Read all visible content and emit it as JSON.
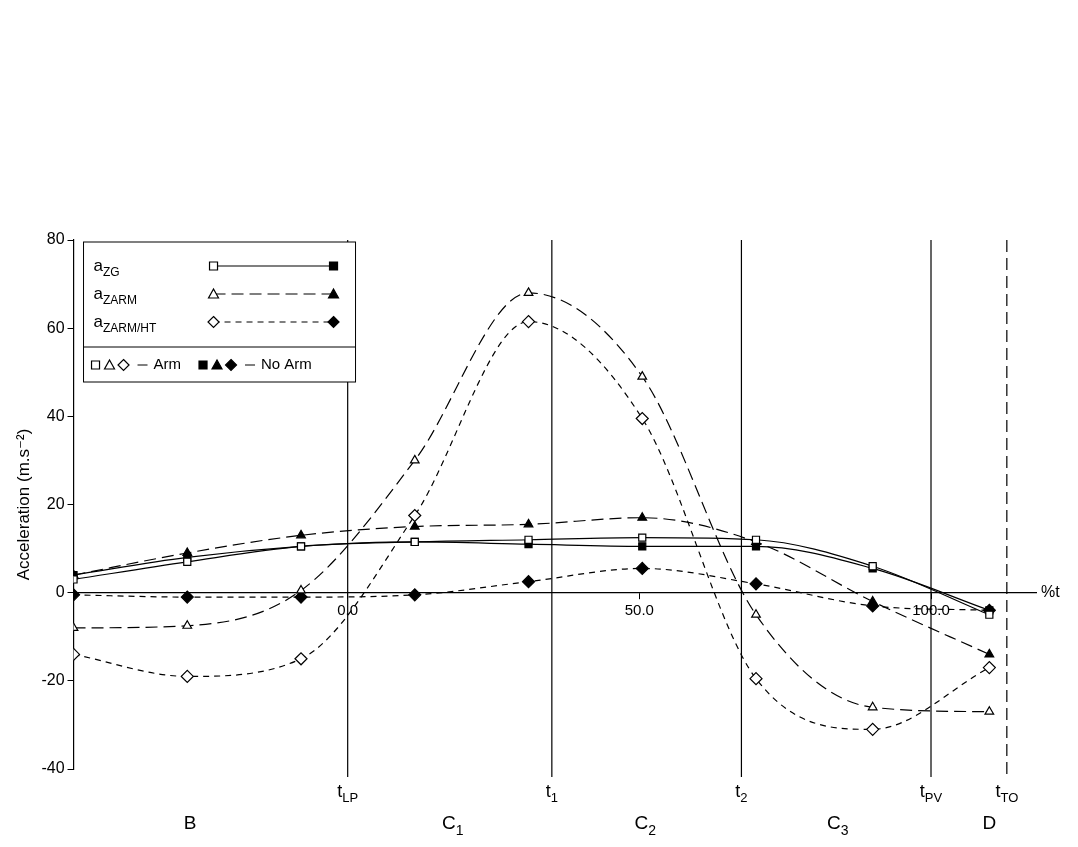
{
  "chart_data": {
    "type": "line",
    "y_label": "Acceleration (m.s⁻²)",
    "x_label": "%t",
    "x": [
      -47,
      -27.5,
      -8,
      11.5,
      31,
      50.5,
      70,
      90,
      110
    ],
    "series": [
      {
        "name": "aZG",
        "group": "Arm",
        "color": "#000000",
        "marker": "square",
        "line_style": "solid",
        "values": [
          3,
          7,
          10.5,
          11.5,
          12,
          12.5,
          12,
          6,
          -5
        ]
      },
      {
        "name": "aZARM",
        "group": "Arm",
        "color": "#000000",
        "marker": "triangle",
        "line_style": "dashed",
        "values": [
          -8,
          -7.5,
          0.5,
          30,
          68,
          49,
          -5,
          -26,
          -27
        ]
      },
      {
        "name": "aZARM/HT",
        "group": "Arm",
        "color": "#000000",
        "marker": "diamond",
        "line_style": "short-dashed",
        "values": [
          -14,
          -19,
          -15,
          17.5,
          61.5,
          39.5,
          -19.5,
          -31,
          -17
        ]
      },
      {
        "name": "aZG",
        "group": "No Arm",
        "color": "#000000",
        "marker": "square",
        "line_style": "solid",
        "values": [
          4,
          8,
          10.5,
          11.5,
          11,
          10.5,
          10.5,
          5.5,
          -4
        ]
      },
      {
        "name": "aZARM",
        "group": "No Arm",
        "color": "#000000",
        "marker": "triangle",
        "line_style": "dashed",
        "values": [
          4,
          9,
          13,
          15,
          15.5,
          17,
          11.5,
          -2,
          -14
        ]
      },
      {
        "name": "aZARM/HT",
        "group": "No Arm",
        "color": "#000000",
        "marker": "diamond",
        "line_style": "short-dashed",
        "values": [
          -0.5,
          -1,
          -1,
          -0.5,
          2.5,
          5.5,
          2,
          -3,
          -4
        ]
      }
    ],
    "xlim": [
      -47,
      118
    ],
    "xticks": [
      {
        "value": 0,
        "label": "0.0"
      },
      {
        "value": 50,
        "label": "50.0"
      },
      {
        "value": 100,
        "label": "100.0"
      }
    ],
    "ylim": [
      -40,
      80
    ],
    "yticks": [
      -40,
      -20,
      0,
      20,
      40,
      60,
      80
    ],
    "grid": false,
    "legend": "top-left",
    "events": [
      {
        "label": "tLP",
        "x": 0,
        "line_style": "solid"
      },
      {
        "label": "t1",
        "x": 35,
        "line_style": "solid"
      },
      {
        "label": "t2",
        "x": 67.5,
        "line_style": "solid"
      },
      {
        "label": "tPV",
        "x": 100,
        "line_style": "solid"
      },
      {
        "label": "tTO",
        "x": 113,
        "line_style": "dashed"
      }
    ],
    "phases": [
      {
        "label": "B",
        "x": -27
      },
      {
        "label": "C1",
        "x": 18
      },
      {
        "label": "C2",
        "x": 51
      },
      {
        "label": "C3",
        "x": 84
      },
      {
        "label": "D",
        "x": 110
      }
    ]
  }
}
